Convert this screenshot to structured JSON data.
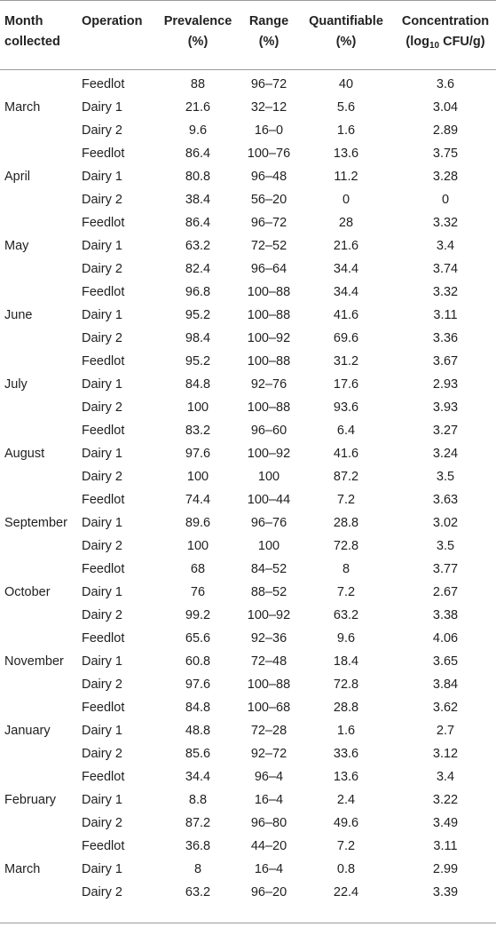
{
  "table": {
    "headers": {
      "month": [
        "Month",
        "collected"
      ],
      "operation": "Operation",
      "prevalence": [
        "Prevalence",
        "(%)"
      ],
      "range": [
        "Range",
        "(%)"
      ],
      "quantifiable": [
        "Quantifiable",
        "(%)"
      ],
      "concentration_line1": "Concentration",
      "concentration_line2_prefix": "(log",
      "concentration_line2_sub": "10",
      "concentration_line2_suffix": " CFU/g)"
    },
    "groups": [
      {
        "month": "March",
        "rows": [
          [
            "Feedlot",
            "88",
            "96–72",
            "40",
            "3.6"
          ],
          [
            "Dairy 1",
            "21.6",
            "32–12",
            "5.6",
            "3.04"
          ],
          [
            "Dairy 2",
            "9.6",
            "16–0",
            "1.6",
            "2.89"
          ]
        ]
      },
      {
        "month": "April",
        "rows": [
          [
            "Feedlot",
            "86.4",
            "100–76",
            "13.6",
            "3.75"
          ],
          [
            "Dairy 1",
            "80.8",
            "96–48",
            "11.2",
            "3.28"
          ],
          [
            "Dairy 2",
            "38.4",
            "56–20",
            "0",
            "0"
          ]
        ]
      },
      {
        "month": "May",
        "rows": [
          [
            "Feedlot",
            "86.4",
            "96–72",
            "28",
            "3.32"
          ],
          [
            "Dairy 1",
            "63.2",
            "72–52",
            "21.6",
            "3.4"
          ],
          [
            "Dairy 2",
            "82.4",
            "96–64",
            "34.4",
            "3.74"
          ]
        ]
      },
      {
        "month": "June",
        "rows": [
          [
            "Feedlot",
            "96.8",
            "100–88",
            "34.4",
            "3.32"
          ],
          [
            "Dairy 1",
            "95.2",
            "100–88",
            "41.6",
            "3.11"
          ],
          [
            "Dairy 2",
            "98.4",
            "100–92",
            "69.6",
            "3.36"
          ]
        ]
      },
      {
        "month": "July",
        "rows": [
          [
            "Feedlot",
            "95.2",
            "100–88",
            "31.2",
            "3.67"
          ],
          [
            "Dairy 1",
            "84.8",
            "92–76",
            "17.6",
            "2.93"
          ],
          [
            "Dairy 2",
            "100",
            "100–88",
            "93.6",
            "3.93"
          ]
        ]
      },
      {
        "month": "August",
        "rows": [
          [
            "Feedlot",
            "83.2",
            "96–60",
            "6.4",
            "3.27"
          ],
          [
            "Dairy 1",
            "97.6",
            "100–92",
            "41.6",
            "3.24"
          ],
          [
            "Dairy 2",
            "100",
            "100",
            "87.2",
            "3.5"
          ]
        ]
      },
      {
        "month": "September",
        "rows": [
          [
            "Feedlot",
            "74.4",
            "100–44",
            "7.2",
            "3.63"
          ],
          [
            "Dairy 1",
            "89.6",
            "96–76",
            "28.8",
            "3.02"
          ],
          [
            "Dairy 2",
            "100",
            "100",
            "72.8",
            "3.5"
          ]
        ]
      },
      {
        "month": "October",
        "rows": [
          [
            "Feedlot",
            "68",
            "84–52",
            "8",
            "3.77"
          ],
          [
            "Dairy 1",
            "76",
            "88–52",
            "7.2",
            "2.67"
          ],
          [
            "Dairy 2",
            "99.2",
            "100–92",
            "63.2",
            "3.38"
          ]
        ]
      },
      {
        "month": "November",
        "rows": [
          [
            "Feedlot",
            "65.6",
            "92–36",
            "9.6",
            "4.06"
          ],
          [
            "Dairy 1",
            "60.8",
            "72–48",
            "18.4",
            "3.65"
          ],
          [
            "Dairy 2",
            "97.6",
            "100–88",
            "72.8",
            "3.84"
          ]
        ]
      },
      {
        "month": "January",
        "rows": [
          [
            "Feedlot",
            "84.8",
            "100–68",
            "28.8",
            "3.62"
          ],
          [
            "Dairy 1",
            "48.8",
            "72–28",
            "1.6",
            "2.7"
          ],
          [
            "Dairy 2",
            "85.6",
            "92–72",
            "33.6",
            "3.12"
          ]
        ]
      },
      {
        "month": "February",
        "rows": [
          [
            "Feedlot",
            "34.4",
            "96–4",
            "13.6",
            "3.4"
          ],
          [
            "Dairy 1",
            "8.8",
            "16–4",
            "2.4",
            "3.22"
          ],
          [
            "Dairy 2",
            "87.2",
            "96–80",
            "49.6",
            "3.49"
          ]
        ]
      },
      {
        "month": "March",
        "rows": [
          [
            "Feedlot",
            "36.8",
            "44–20",
            "7.2",
            "3.11"
          ],
          [
            "Dairy 1",
            "8",
            "16–4",
            "0.8",
            "2.99"
          ],
          [
            "Dairy 2",
            "63.2",
            "96–20",
            "22.4",
            "3.39"
          ]
        ]
      }
    ]
  }
}
